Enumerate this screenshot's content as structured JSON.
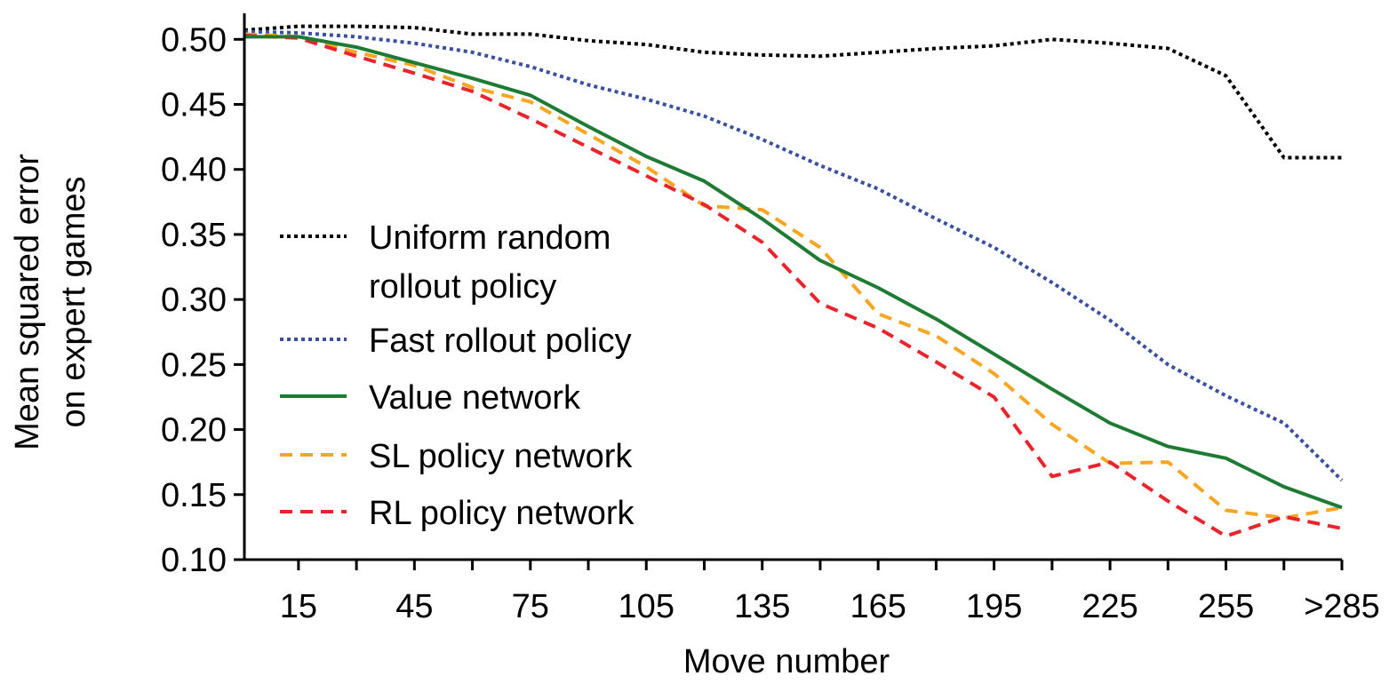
{
  "chart_data": {
    "type": "line",
    "xlabel": "Move number",
    "ylabel_lines": [
      "Mean squared error",
      "on expert games"
    ],
    "x": [
      1,
      15,
      30,
      45,
      60,
      75,
      90,
      105,
      120,
      135,
      150,
      165,
      180,
      195,
      210,
      225,
      240,
      255,
      270,
      285
    ],
    "x_tick_values": [
      15,
      45,
      75,
      105,
      135,
      165,
      195,
      225,
      255,
      285
    ],
    "x_tick_labels": [
      "15",
      "45",
      "75",
      "105",
      "135",
      "165",
      "195",
      "225",
      "255",
      ">285"
    ],
    "ylim": [
      0.1,
      0.52
    ],
    "y_ticks": [
      0.1,
      0.15,
      0.2,
      0.25,
      0.3,
      0.35,
      0.4,
      0.45,
      0.5
    ],
    "y_tick_labels": [
      "0.10",
      "0.15",
      "0.20",
      "0.25",
      "0.30",
      "0.35",
      "0.40",
      "0.45",
      "0.50"
    ],
    "legend_placement": "middle-left",
    "series": [
      {
        "name_lines": [
          "Uniform random",
          "rollout policy"
        ],
        "color": "#000000",
        "style": "dotted",
        "values": [
          0.507,
          0.51,
          0.51,
          0.509,
          0.504,
          0.504,
          0.499,
          0.496,
          0.49,
          0.488,
          0.487,
          0.49,
          0.493,
          0.495,
          0.5,
          0.497,
          0.493,
          0.472,
          0.409,
          0.409
        ]
      },
      {
        "name_lines": [
          "Fast rollout policy"
        ],
        "color": "#3a4fa0",
        "style": "dotted",
        "values": [
          0.506,
          0.505,
          0.502,
          0.497,
          0.49,
          0.479,
          0.465,
          0.454,
          0.441,
          0.423,
          0.403,
          0.385,
          0.362,
          0.34,
          0.313,
          0.284,
          0.25,
          0.226,
          0.205,
          0.161
        ]
      },
      {
        "name_lines": [
          "Value network"
        ],
        "color": "#1e7b34",
        "style": "solid",
        "values": [
          0.502,
          0.502,
          0.494,
          0.482,
          0.47,
          0.457,
          0.433,
          0.41,
          0.391,
          0.362,
          0.33,
          0.309,
          0.285,
          0.258,
          0.231,
          0.205,
          0.187,
          0.178,
          0.156,
          0.14
        ]
      },
      {
        "name_lines": [
          "SL policy network"
        ],
        "color": "#f5a623",
        "style": "dashed",
        "values": [
          0.504,
          0.502,
          0.49,
          0.48,
          0.463,
          0.452,
          0.427,
          0.402,
          0.372,
          0.369,
          0.34,
          0.289,
          0.272,
          0.243,
          0.204,
          0.174,
          0.175,
          0.138,
          0.132,
          0.14
        ]
      },
      {
        "name_lines": [
          "RL policy network"
        ],
        "color": "#e8242c",
        "style": "dashed",
        "values": [
          0.503,
          0.501,
          0.487,
          0.474,
          0.46,
          0.439,
          0.417,
          0.395,
          0.373,
          0.344,
          0.297,
          0.278,
          0.252,
          0.225,
          0.164,
          0.175,
          0.145,
          0.118,
          0.133,
          0.124
        ]
      }
    ]
  }
}
